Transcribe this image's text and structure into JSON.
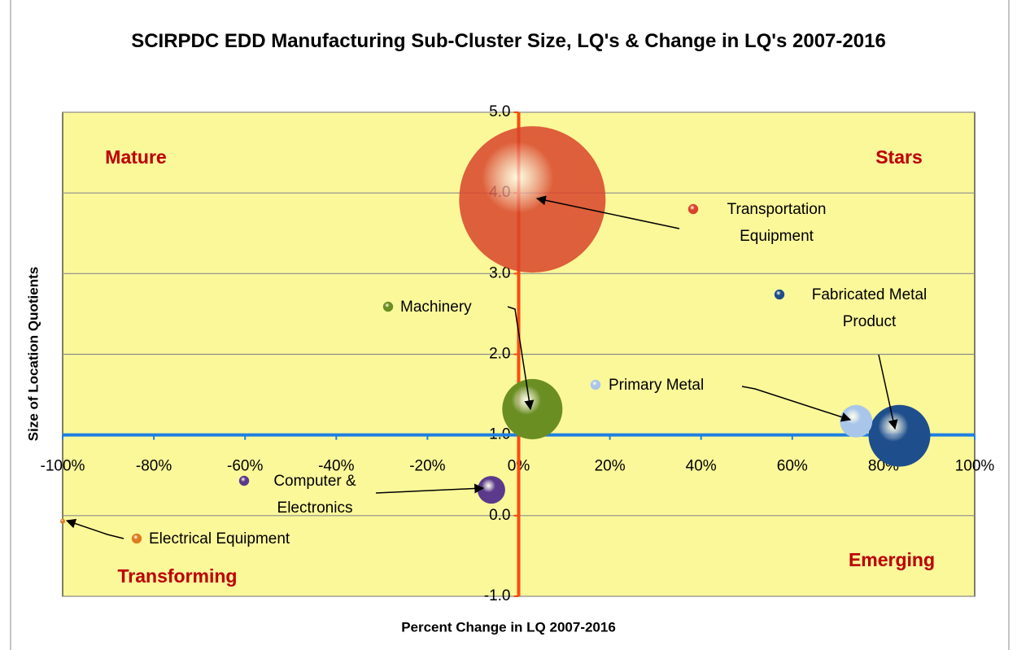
{
  "chart_data": {
    "type": "bubble",
    "title": "SCIRPDC EDD Manufacturing Sub-Cluster Size, LQ's & Change in LQ's 2007-2016",
    "x_label": "Percent Change in LQ 2007-2016",
    "y_label": "Size of Location Quotients",
    "quadrant_labels": {
      "top_left": "Mature",
      "top_right": "Stars",
      "bottom_left": "Transforming",
      "bottom_right": "Emerging"
    },
    "xlim": [
      -100,
      100
    ],
    "ylim": [
      -1,
      5
    ],
    "xticks": [
      {
        "value": -100,
        "label": "-100%"
      },
      {
        "value": -80,
        "label": "-80%"
      },
      {
        "value": -60,
        "label": "-60%"
      },
      {
        "value": -40,
        "label": "-40%"
      },
      {
        "value": -20,
        "label": "-20%"
      },
      {
        "value": 0,
        "label": "0%"
      },
      {
        "value": 20,
        "label": "20%"
      },
      {
        "value": 40,
        "label": "40%"
      },
      {
        "value": 60,
        "label": "60%"
      },
      {
        "value": 80,
        "label": "80%"
      },
      {
        "value": 100,
        "label": "100%"
      }
    ],
    "yticks": [
      {
        "value": -1,
        "label": "-1.0"
      },
      {
        "value": 0,
        "label": "0.0"
      },
      {
        "value": 1,
        "label": "1.0"
      },
      {
        "value": 2,
        "label": "2.0"
      },
      {
        "value": 3,
        "label": "3.0"
      },
      {
        "value": 4,
        "label": "4.0"
      },
      {
        "value": 5,
        "label": "5.0"
      }
    ],
    "x_axis_crosses_at": 1,
    "y_axis_crosses_at": 0,
    "grid": true,
    "series": [
      {
        "name": "Transportation Equipment",
        "color": "#d9442a",
        "x": [
          3
        ],
        "values": [
          3.92
        ],
        "sizes": [
          81
        ]
      },
      {
        "name": "Machinery",
        "color": "#6b8e23",
        "x": [
          3
        ],
        "values": [
          1.32
        ],
        "sizes": [
          13.7
        ]
      },
      {
        "name": "Fabricated Metal Product",
        "color": "#1f4e8c",
        "x": [
          83.5
        ],
        "values": [
          0.99
        ],
        "sizes": [
          14.4
        ]
      },
      {
        "name": "Primary Metal",
        "color": "#a9c6ea",
        "x": [
          74
        ],
        "values": [
          1.17
        ],
        "sizes": [
          4
        ]
      },
      {
        "name": "Computer & Electronics",
        "color": "#5b3a8c",
        "x": [
          -6
        ],
        "values": [
          0.32
        ],
        "sizes": [
          2.9
        ]
      },
      {
        "name": "Electrical Equipment",
        "color": "#e07b20",
        "x": [
          -100
        ],
        "values": [
          -0.07
        ],
        "sizes": [
          0.09
        ]
      }
    ]
  }
}
